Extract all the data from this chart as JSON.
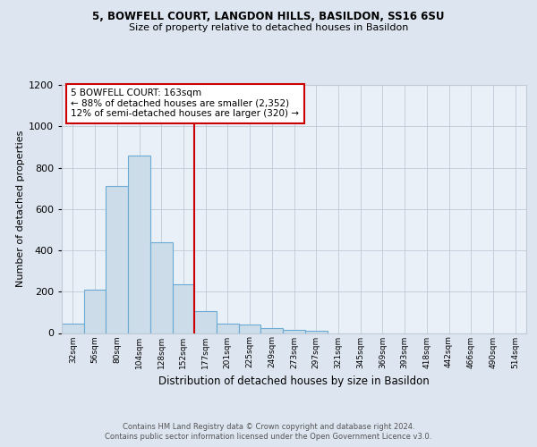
{
  "title1": "5, BOWFELL COURT, LANGDON HILLS, BASILDON, SS16 6SU",
  "title2": "Size of property relative to detached houses in Basildon",
  "xlabel": "Distribution of detached houses by size in Basildon",
  "ylabel": "Number of detached properties",
  "footnote1": "Contains HM Land Registry data © Crown copyright and database right 2024.",
  "footnote2": "Contains public sector information licensed under the Open Government Licence v3.0.",
  "bar_labels": [
    "32sqm",
    "56sqm",
    "80sqm",
    "104sqm",
    "128sqm",
    "152sqm",
    "177sqm",
    "201sqm",
    "225sqm",
    "249sqm",
    "273sqm",
    "297sqm",
    "321sqm",
    "345sqm",
    "369sqm",
    "393sqm",
    "418sqm",
    "442sqm",
    "466sqm",
    "490sqm",
    "514sqm"
  ],
  "bar_values": [
    47,
    210,
    710,
    860,
    440,
    235,
    105,
    45,
    42,
    22,
    15,
    10,
    0,
    0,
    0,
    0,
    0,
    0,
    0,
    0,
    0
  ],
  "bar_color": "#ccdce8",
  "bar_edge_color": "#6aaad4",
  "vline_x_index": 5.5,
  "vline_color": "#cc0000",
  "annotation_text": "5 BOWFELL COURT: 163sqm\n← 88% of detached houses are smaller (2,352)\n12% of semi-detached houses are larger (320) →",
  "annotation_box_color": "white",
  "annotation_box_edge": "#cc0000",
  "ylim": [
    0,
    1200
  ],
  "yticks": [
    0,
    200,
    400,
    600,
    800,
    1000,
    1200
  ],
  "background_color": "#dde6f0",
  "axes_background": "#eaf0f7",
  "grid_color": "#c0cad8"
}
